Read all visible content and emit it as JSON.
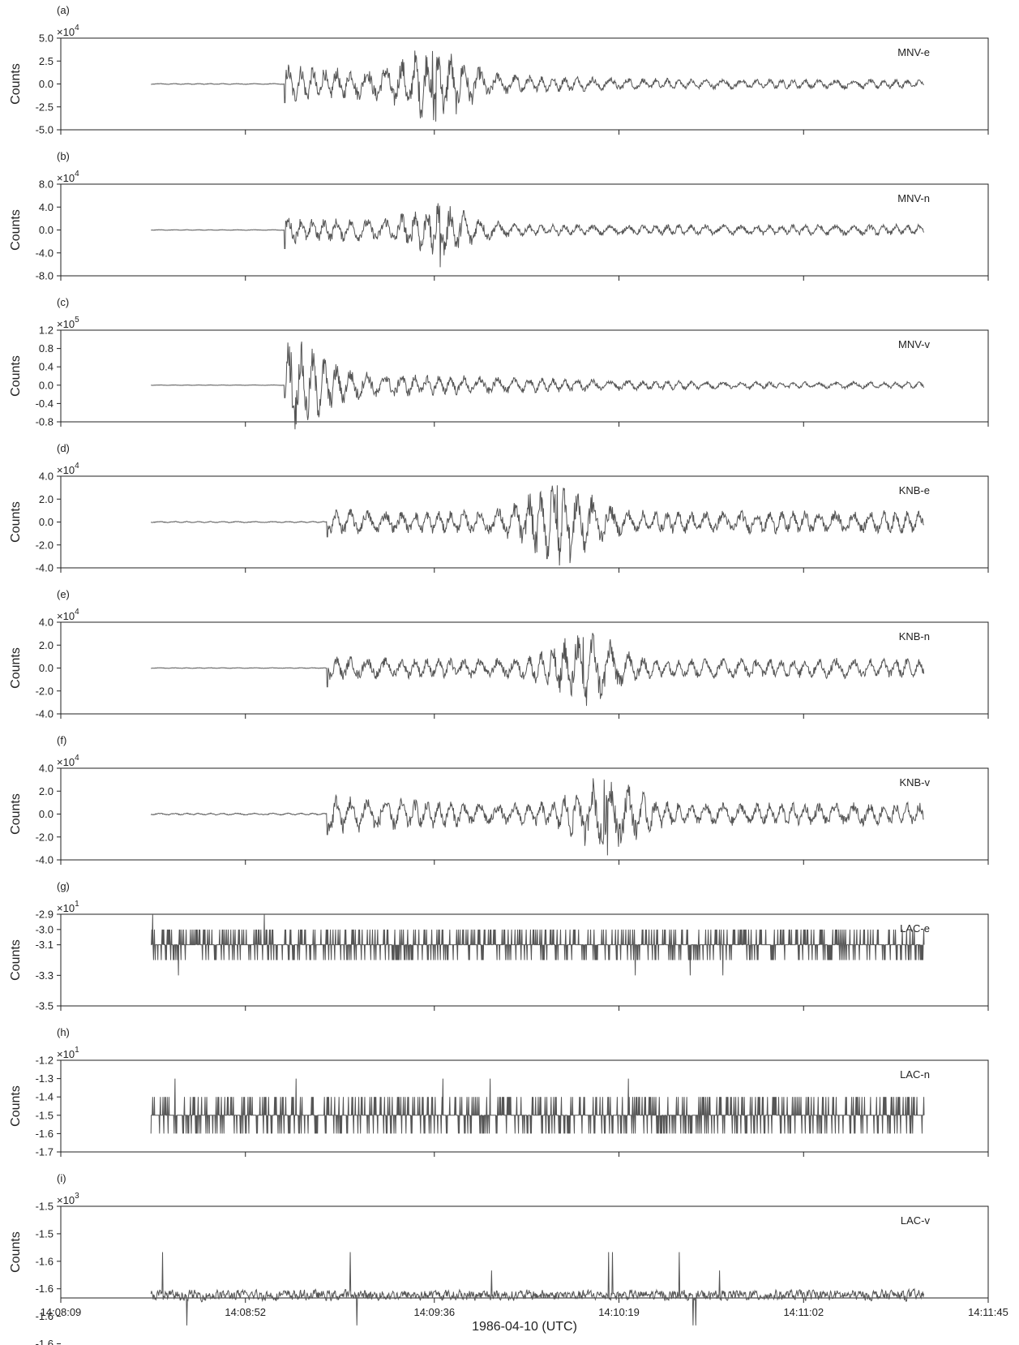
{
  "chart_data": {
    "type": "line",
    "layout": "9 vertically stacked panels sharing a common time axis",
    "x_axis": {
      "title": "1986-04-10 (UTC)",
      "range_seconds_of_day": [
        50889,
        51105
      ],
      "ticks": [
        {
          "t": 50889,
          "label": "14:08:09"
        },
        {
          "t": 50932,
          "label": "14:08:52"
        },
        {
          "t": 50976,
          "label": "14:09:36"
        },
        {
          "t": 51019,
          "label": "14:10:19"
        },
        {
          "t": 51062,
          "label": "14:11:02"
        },
        {
          "t": 51105,
          "label": "14:11:45"
        }
      ]
    },
    "line_color": "#555555",
    "panels": [
      {
        "letter": "(a)",
        "station": "MNV-e",
        "ylabel": "Counts",
        "exponent_base": "×10",
        "exponent": "4",
        "ylim": [
          -5.0,
          5.0
        ],
        "yticks": [
          "5.0",
          "2.5",
          "0.0",
          "-2.5",
          "-5.0"
        ],
        "ytick_values": [
          5.0,
          2.5,
          0.0,
          -2.5,
          -5.0
        ],
        "signal": {
          "start": 50910,
          "end": 51090,
          "onset": 50941,
          "peak_time": 50976,
          "peak": 3.6,
          "pre_noise": 0.05,
          "early": 2.0,
          "coda": 0.5,
          "min_marker": -4.1
        }
      },
      {
        "letter": "(b)",
        "station": "MNV-n",
        "ylabel": "Counts",
        "exponent_base": "×10",
        "exponent": "4",
        "ylim": [
          -8.0,
          8.0
        ],
        "yticks": [
          "8.0",
          "4.0",
          "0.0",
          "-4.0",
          "-8.0"
        ],
        "ytick_values": [
          8.0,
          4.0,
          0.0,
          -4.0,
          -8.0
        ],
        "signal": {
          "start": 50910,
          "end": 51090,
          "onset": 50941,
          "peak_time": 50977,
          "peak": 4.2,
          "pre_noise": 0.05,
          "early": 2.2,
          "coda": 0.9,
          "min_marker": -6.5
        }
      },
      {
        "letter": "(c)",
        "station": "MNV-v",
        "ylabel": "Counts",
        "exponent_base": "×10",
        "exponent": "5",
        "ylim": [
          -0.8,
          1.2
        ],
        "yticks": [
          "1.2",
          "0.8",
          "0.4",
          "0.0",
          "-0.4",
          "-0.8"
        ],
        "ytick_values": [
          1.2,
          0.8,
          0.4,
          0.0,
          -0.4,
          -0.8
        ],
        "signal": {
          "start": 50910,
          "end": 51090,
          "onset": 50941,
          "peak_time": 50943,
          "peak": 0.72,
          "pre_noise": 0.004,
          "early": 0.35,
          "coda": 0.07,
          "min_marker": -0.55
        }
      },
      {
        "letter": "(d)",
        "station": "KNB-e",
        "ylabel": "Counts",
        "exponent_base": "×10",
        "exponent": "4",
        "ylim": [
          -4.0,
          4.0
        ],
        "yticks": [
          "4.0",
          "2.0",
          "0.0",
          "-2.0",
          "-4.0"
        ],
        "ytick_values": [
          4.0,
          2.0,
          0.0,
          -2.0,
          -4.0
        ],
        "signal": {
          "start": 50910,
          "end": 51090,
          "onset": 50951,
          "peak_time": 51005,
          "peak": 3.2,
          "pre_noise": 0.05,
          "early": 1.1,
          "coda": 0.9,
          "min_marker": -2.6
        }
      },
      {
        "letter": "(e)",
        "station": "KNB-n",
        "ylabel": "Counts",
        "exponent_base": "×10",
        "exponent": "4",
        "ylim": [
          -4.0,
          4.0
        ],
        "yticks": [
          "4.0",
          "2.0",
          "0.0",
          "-2.0",
          "-4.0"
        ],
        "ytick_values": [
          4.0,
          2.0,
          0.0,
          -2.0,
          -4.0
        ],
        "signal": {
          "start": 50910,
          "end": 51090,
          "onset": 50951,
          "peak_time": 51011,
          "peak": 2.7,
          "pre_noise": 0.03,
          "early": 1.0,
          "coda": 0.8,
          "min_marker": -3.3
        }
      },
      {
        "letter": "(f)",
        "station": "KNB-v",
        "ylabel": "Counts",
        "exponent_base": "×10",
        "exponent": "4",
        "ylim": [
          -4.0,
          4.0
        ],
        "yticks": [
          "4.0",
          "2.0",
          "0.0",
          "-2.0",
          "-4.0"
        ],
        "ytick_values": [
          4.0,
          2.0,
          0.0,
          -2.0,
          -4.0
        ],
        "signal": {
          "start": 50910,
          "end": 51090,
          "onset": 50951,
          "peak_time": 51016,
          "peak": 3.0,
          "pre_noise": 0.08,
          "early": 1.6,
          "coda": 0.9,
          "min_marker": -3.6
        }
      },
      {
        "letter": "(g)",
        "station": "LAC-e",
        "ylabel": "Counts",
        "exponent_base": "×10",
        "exponent": "1",
        "ylim": [
          -3.5,
          -2.9
        ],
        "yticks": [
          "-2.9",
          "-3.0",
          "-3.1",
          "-3.3",
          "-3.5"
        ],
        "ytick_values": [
          -2.9,
          -3.0,
          -3.1,
          -3.3,
          -3.5
        ],
        "digital": {
          "start": 50910,
          "end": 51090,
          "levels": [
            -3.0,
            -3.1,
            -3.2
          ],
          "rare": [
            -2.9,
            -3.3
          ]
        }
      },
      {
        "letter": "(h)",
        "station": "LAC-n",
        "ylabel": "Counts",
        "exponent_base": "×10",
        "exponent": "1",
        "ylim": [
          -1.7,
          -1.2
        ],
        "yticks": [
          "-1.2",
          "-1.3",
          "-1.4",
          "-1.5",
          "-1.6",
          "-1.7"
        ],
        "ytick_values": [
          -1.2,
          -1.3,
          -1.4,
          -1.5,
          -1.6,
          -1.7
        ],
        "digital": {
          "start": 50910,
          "end": 51090,
          "levels": [
            -1.4,
            -1.5,
            -1.6
          ],
          "rare": [
            -1.3
          ]
        }
      },
      {
        "letter": "(i)",
        "station": "LAC-v",
        "ylabel": "Counts",
        "exponent_base": "×10",
        "exponent": "3",
        "ylim": [
          -1.6,
          -1.5
        ],
        "yticks": [
          "-1.5",
          "-1.5",
          "-1.6",
          "-1.6",
          "-1.6",
          "-1.6"
        ],
        "ytick_values": [
          -1.5,
          -1.53,
          -1.56,
          -1.59,
          -1.62,
          -1.65
        ],
        "noise": {
          "start": 50910,
          "end": 51090,
          "center": -1.597,
          "amp": 0.006,
          "spikes": [
            -1.57,
            -1.55,
            -1.63
          ]
        }
      }
    ]
  }
}
